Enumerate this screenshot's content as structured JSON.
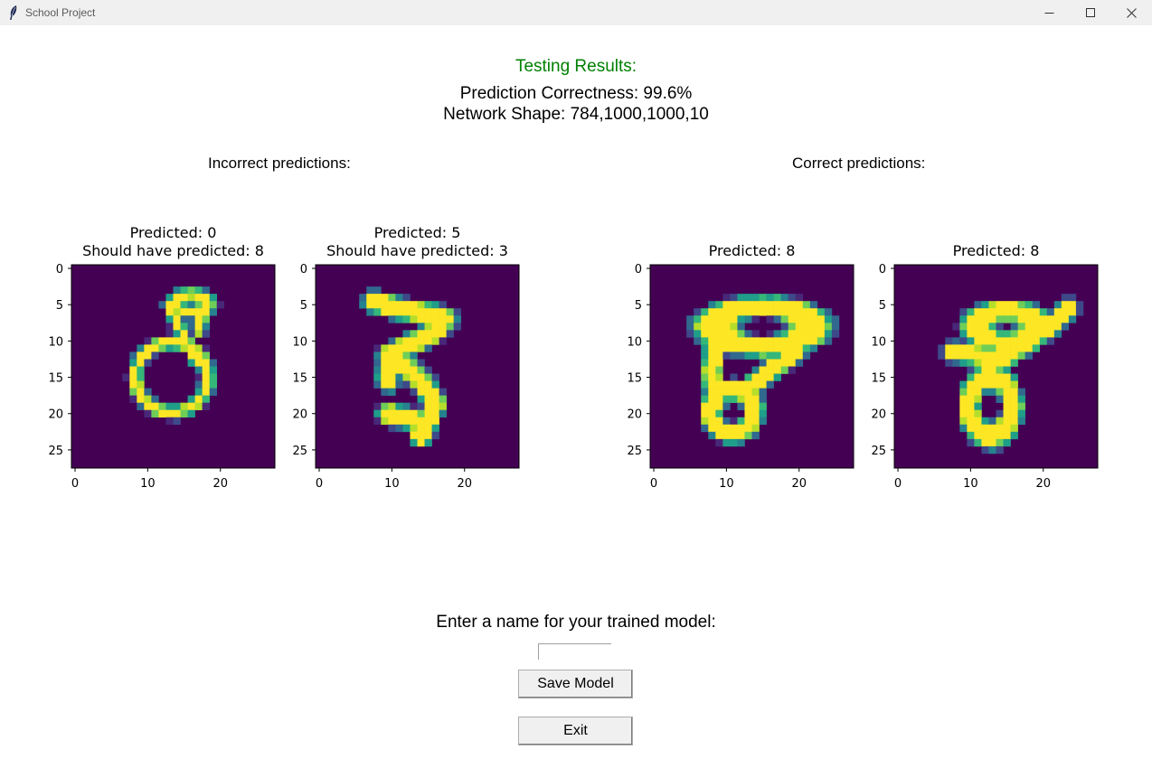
{
  "window": {
    "title": "School Project"
  },
  "header": {
    "testing_results": "Testing Results:",
    "correctness": "Prediction Correctness: 99.6%",
    "network_shape": "Network Shape: 784,1000,1000,10",
    "accent_color": "#008000"
  },
  "sections": {
    "incorrect": "Incorrect predictions:",
    "correct": "Correct predictions:"
  },
  "chart_data": [
    {
      "type": "heatmap",
      "title": [
        "Predicted: 0",
        "Should have predicted: 8"
      ],
      "xticks": [
        "0",
        "10",
        "20"
      ],
      "yticks": [
        "0",
        "5",
        "10",
        "15",
        "20",
        "25"
      ],
      "colormap": "viridis",
      "digit": "8"
    },
    {
      "type": "heatmap",
      "title": [
        "Predicted: 5",
        "Should have predicted: 3"
      ],
      "xticks": [
        "0",
        "10",
        "20"
      ],
      "yticks": [
        "0",
        "5",
        "10",
        "15",
        "20",
        "25"
      ],
      "colormap": "viridis",
      "digit": "3"
    },
    {
      "type": "heatmap",
      "title": [
        "Predicted: 8"
      ],
      "xticks": [
        "0",
        "10",
        "20"
      ],
      "yticks": [
        "0",
        "5",
        "10",
        "15",
        "20",
        "25"
      ],
      "colormap": "viridis",
      "digit": "8"
    },
    {
      "type": "heatmap",
      "title": [
        "Predicted: 8"
      ],
      "xticks": [
        "0",
        "10",
        "20"
      ],
      "yticks": [
        "0",
        "5",
        "10",
        "15",
        "20",
        "25"
      ],
      "colormap": "viridis",
      "digit": "8"
    }
  ],
  "form": {
    "prompt": "Enter a name for your trained model:",
    "name_value": "",
    "save_label": "Save Model",
    "exit_label": "Exit"
  }
}
